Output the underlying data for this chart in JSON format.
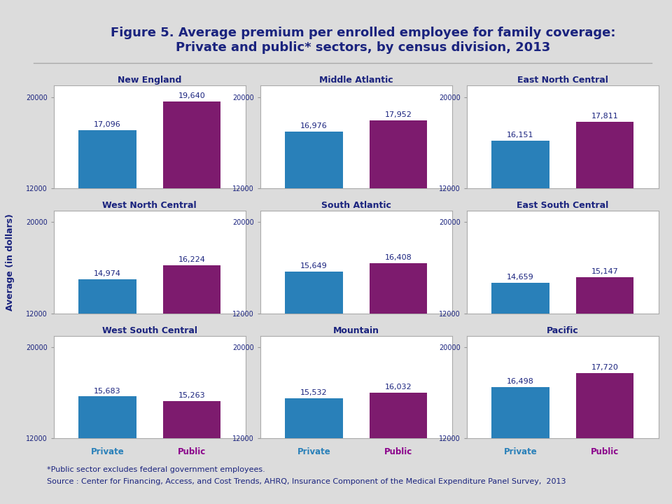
{
  "title_line1": "Figure 5. Average premium per enrolled employee for family coverage:",
  "title_line2": "Private and public* sectors, by census division, 2013",
  "ylabel": "Average (in dollars)",
  "footnote1": "*Public sector excludes federal government employees.",
  "footnote2": "Source : Center for Financing, Access, and Cost Trends, AHRQ, Insurance Component of the Medical Expenditure Panel Survey,  2013",
  "regions": [
    {
      "name": "New England",
      "private": 17096,
      "public": 19640
    },
    {
      "name": "Middle Atlantic",
      "private": 16976,
      "public": 17952
    },
    {
      "name": "East North Central",
      "private": 16151,
      "public": 17811
    },
    {
      "name": "West North Central",
      "private": 14974,
      "public": 16224
    },
    {
      "name": "South Atlantic",
      "private": 15649,
      "public": 16408
    },
    {
      "name": "East South Central",
      "private": 14659,
      "public": 15147
    },
    {
      "name": "West South Central",
      "private": 15683,
      "public": 15263
    },
    {
      "name": "Mountain",
      "private": 15532,
      "public": 16032
    },
    {
      "name": "Pacific",
      "private": 16498,
      "public": 17720
    }
  ],
  "private_color": "#2980B9",
  "public_color": "#7D1B6E",
  "title_color": "#1A237E",
  "label_color": "#1A237E",
  "private_label_color": "#2980B9",
  "public_label_color": "#8B008B",
  "tick_color": "#1A237E",
  "background_color": "#DCDCDC",
  "plot_bg_color": "#FFFFFF",
  "ylim_min": 12000,
  "ylim_max": 21000,
  "yticks": [
    12000,
    20000
  ],
  "title_fontsize": 13,
  "region_title_fontsize": 9,
  "value_fontsize": 8,
  "footnote_fontsize": 8,
  "xlabel_private": "Private",
  "xlabel_public": "Public"
}
